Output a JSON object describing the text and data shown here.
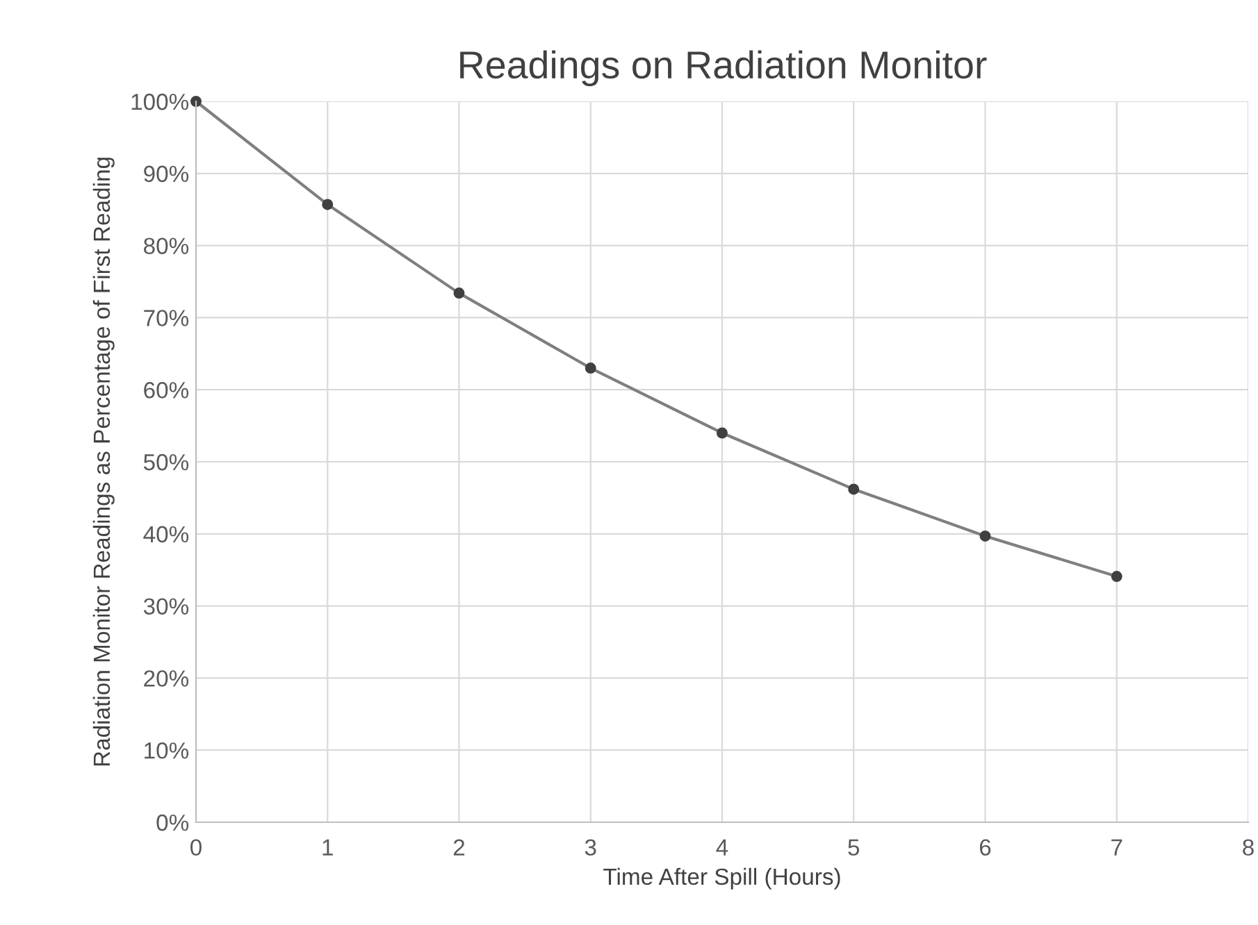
{
  "chart_data": {
    "type": "line",
    "title": "Readings on Radiation Monitor",
    "xlabel": "Time After Spill (Hours)",
    "ylabel": "Radiation Monitor Readings as Percentage of First Reading",
    "x": [
      0,
      1,
      2,
      3,
      4,
      5,
      6,
      7
    ],
    "series": [
      {
        "color": "#7f7f7f",
        "values": [
          100,
          85.7,
          73.4,
          63.0,
          54.0,
          46.2,
          39.7,
          34.1
        ]
      }
    ],
    "xlim": [
      0,
      8
    ],
    "xticks": [
      0,
      1,
      2,
      3,
      4,
      5,
      6,
      7,
      8
    ],
    "ylim": [
      0,
      100
    ],
    "yticks": [
      {
        "value": 0,
        "label": "0%"
      },
      {
        "value": 10,
        "label": "10%"
      },
      {
        "value": 20,
        "label": "20%"
      },
      {
        "value": 30,
        "label": "30%"
      },
      {
        "value": 40,
        "label": "40%"
      },
      {
        "value": 50,
        "label": "50%"
      },
      {
        "value": 60,
        "label": "60%"
      },
      {
        "value": 70,
        "label": "70%"
      },
      {
        "value": 80,
        "label": "80%"
      },
      {
        "value": 90,
        "label": "90%"
      },
      {
        "value": 100,
        "label": "100%"
      }
    ],
    "grid": true,
    "marker": "circle",
    "line_style": "solid"
  }
}
